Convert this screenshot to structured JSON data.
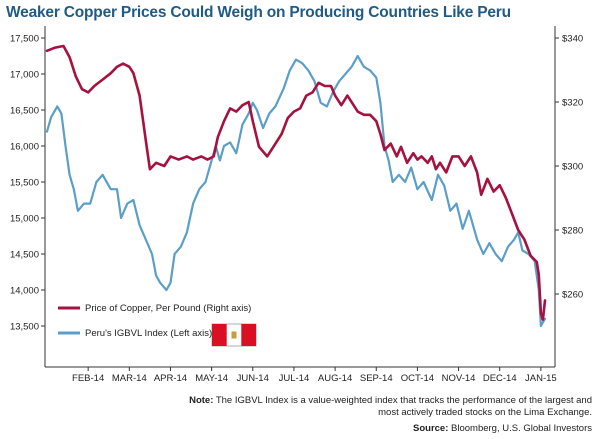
{
  "chart_data": {
    "type": "line",
    "title": "Weaker Copper Prices Could Weigh on Producing Countries Like Peru",
    "x_ticks": [
      "FEB-14",
      "MAR-14",
      "APR-14",
      "MAY-14",
      "JUN-14",
      "JUL-14",
      "AUG-14",
      "SEP-14",
      "OCT-14",
      "NOV-14",
      "DEC-14",
      "JAN-15"
    ],
    "left_axis": {
      "ylim": [
        13500,
        17500
      ],
      "ticks": [
        "13,500",
        "14,000",
        "14,500",
        "15,000",
        "15,500",
        "16,000",
        "16,500",
        "17,000",
        "17,500"
      ]
    },
    "right_axis": {
      "ylim": [
        250,
        340
      ],
      "ticks": [
        "$260",
        "$280",
        "$300",
        "$320",
        "$340"
      ]
    },
    "grid": false,
    "legend_placement": "bottom-left",
    "x_range": [
      0,
      12.1
    ],
    "series": [
      {
        "name": "Price of Copper, Per Pound (Right axis)",
        "axis": "right",
        "color": "#a6113f",
        "points": [
          [
            0,
            336
          ],
          [
            0.2,
            337
          ],
          [
            0.4,
            337.5
          ],
          [
            0.55,
            334
          ],
          [
            0.7,
            328
          ],
          [
            0.85,
            324
          ],
          [
            1.0,
            323
          ],
          [
            1.15,
            325
          ],
          [
            1.35,
            327
          ],
          [
            1.55,
            329
          ],
          [
            1.7,
            331
          ],
          [
            1.85,
            332
          ],
          [
            2.0,
            331
          ],
          [
            2.1,
            329
          ],
          [
            2.25,
            322
          ],
          [
            2.4,
            308
          ],
          [
            2.5,
            299
          ],
          [
            2.65,
            301
          ],
          [
            2.85,
            300
          ],
          [
            3.0,
            303
          ],
          [
            3.2,
            302
          ],
          [
            3.4,
            303
          ],
          [
            3.55,
            302
          ],
          [
            3.75,
            303
          ],
          [
            3.9,
            302
          ],
          [
            4.05,
            303
          ],
          [
            4.15,
            309
          ],
          [
            4.3,
            314
          ],
          [
            4.45,
            318
          ],
          [
            4.6,
            317
          ],
          [
            4.75,
            319
          ],
          [
            4.9,
            320
          ],
          [
            5.0,
            314
          ],
          [
            5.15,
            306
          ],
          [
            5.35,
            303
          ],
          [
            5.5,
            306
          ],
          [
            5.7,
            310
          ],
          [
            5.85,
            315
          ],
          [
            6.0,
            317
          ],
          [
            6.15,
            318
          ],
          [
            6.3,
            322
          ],
          [
            6.45,
            323
          ],
          [
            6.6,
            326
          ],
          [
            6.75,
            325
          ],
          [
            6.9,
            325
          ],
          [
            7.0,
            322
          ],
          [
            7.15,
            319
          ],
          [
            7.3,
            322
          ],
          [
            7.45,
            319
          ],
          [
            7.55,
            317
          ],
          [
            7.7,
            316
          ],
          [
            7.85,
            316
          ],
          [
            8.0,
            314
          ],
          [
            8.1,
            310
          ],
          [
            8.2,
            305
          ],
          [
            8.35,
            307
          ],
          [
            8.5,
            303
          ],
          [
            8.6,
            306
          ],
          [
            8.75,
            301
          ],
          [
            8.9,
            304
          ],
          [
            9.0,
            302
          ],
          [
            9.1,
            303
          ],
          [
            9.25,
            301
          ],
          [
            9.35,
            303
          ],
          [
            9.45,
            299
          ],
          [
            9.55,
            301
          ],
          [
            9.7,
            298
          ],
          [
            9.85,
            303
          ],
          [
            10.0,
            303
          ],
          [
            10.15,
            300
          ],
          [
            10.3,
            303
          ],
          [
            10.45,
            298
          ],
          [
            10.55,
            291
          ],
          [
            10.7,
            296
          ],
          [
            10.85,
            292
          ],
          [
            11.0,
            294
          ],
          [
            11.15,
            290
          ],
          [
            11.3,
            285
          ],
          [
            11.45,
            280
          ],
          [
            11.6,
            277
          ],
          [
            11.75,
            272
          ],
          [
            11.9,
            270
          ],
          [
            11.95,
            266
          ],
          [
            12.0,
            254
          ],
          [
            12.05,
            252
          ],
          [
            12.1,
            258
          ]
        ]
      },
      {
        "name": "Peru's IGBVL Index (Left axis)",
        "axis": "left",
        "color": "#5b9ec8",
        "points": [
          [
            0,
            16200
          ],
          [
            0.1,
            16400
          ],
          [
            0.25,
            16550
          ],
          [
            0.35,
            16450
          ],
          [
            0.45,
            16000
          ],
          [
            0.55,
            15600
          ],
          [
            0.65,
            15400
          ],
          [
            0.75,
            15100
          ],
          [
            0.9,
            15200
          ],
          [
            1.05,
            15200
          ],
          [
            1.2,
            15500
          ],
          [
            1.35,
            15600
          ],
          [
            1.55,
            15400
          ],
          [
            1.7,
            15400
          ],
          [
            1.8,
            15000
          ],
          [
            1.95,
            15200
          ],
          [
            2.1,
            15250
          ],
          [
            2.25,
            14900
          ],
          [
            2.4,
            14700
          ],
          [
            2.55,
            14500
          ],
          [
            2.65,
            14200
          ],
          [
            2.75,
            14100
          ],
          [
            2.9,
            14000
          ],
          [
            3.0,
            14100
          ],
          [
            3.1,
            14500
          ],
          [
            3.25,
            14600
          ],
          [
            3.4,
            14800
          ],
          [
            3.55,
            15200
          ],
          [
            3.7,
            15400
          ],
          [
            3.85,
            15500
          ],
          [
            4.0,
            15800
          ],
          [
            4.1,
            16000
          ],
          [
            4.2,
            15800
          ],
          [
            4.3,
            16000
          ],
          [
            4.45,
            16050
          ],
          [
            4.6,
            15900
          ],
          [
            4.75,
            16300
          ],
          [
            4.9,
            16450
          ],
          [
            5.0,
            16600
          ],
          [
            5.1,
            16500
          ],
          [
            5.25,
            16250
          ],
          [
            5.4,
            16450
          ],
          [
            5.55,
            16550
          ],
          [
            5.75,
            16800
          ],
          [
            5.9,
            17050
          ],
          [
            6.05,
            17200
          ],
          [
            6.2,
            17150
          ],
          [
            6.35,
            17050
          ],
          [
            6.5,
            16900
          ],
          [
            6.65,
            16600
          ],
          [
            6.8,
            16550
          ],
          [
            6.95,
            16750
          ],
          [
            7.1,
            16900
          ],
          [
            7.25,
            17000
          ],
          [
            7.4,
            17100
          ],
          [
            7.55,
            17250
          ],
          [
            7.7,
            17100
          ],
          [
            7.85,
            17050
          ],
          [
            8.0,
            16950
          ],
          [
            8.1,
            16600
          ],
          [
            8.2,
            16000
          ],
          [
            8.3,
            15800
          ],
          [
            8.4,
            15500
          ],
          [
            8.55,
            15600
          ],
          [
            8.7,
            15500
          ],
          [
            8.85,
            15700
          ],
          [
            9.0,
            15400
          ],
          [
            9.15,
            15500
          ],
          [
            9.35,
            15250
          ],
          [
            9.5,
            15600
          ],
          [
            9.65,
            15450
          ],
          [
            9.8,
            15100
          ],
          [
            9.95,
            15200
          ],
          [
            10.1,
            14850
          ],
          [
            10.25,
            15100
          ],
          [
            10.45,
            14700
          ],
          [
            10.6,
            14500
          ],
          [
            10.75,
            14650
          ],
          [
            10.9,
            14500
          ],
          [
            11.05,
            14400
          ],
          [
            11.2,
            14600
          ],
          [
            11.35,
            14700
          ],
          [
            11.45,
            14800
          ],
          [
            11.55,
            14550
          ],
          [
            11.7,
            14500
          ],
          [
            11.85,
            14400
          ],
          [
            11.95,
            14000
          ],
          [
            12.0,
            13500
          ],
          [
            12.05,
            13550
          ],
          [
            12.1,
            13600
          ]
        ]
      }
    ],
    "note_label": "Note:",
    "note_text": "The IGBVL Index is a value-weighted index that tracks the performance of the largest and most actively traded stocks on the Lima Exchange.",
    "source_label": "Source:",
    "source_text": "Bloomberg, U.S. Global Investors"
  },
  "colors": {
    "title": "#1f5b85",
    "copper": "#a6113f",
    "igbvl": "#5b9ec8",
    "flag_red": "#d91023"
  },
  "legend_icon": "peru-flag-icon"
}
